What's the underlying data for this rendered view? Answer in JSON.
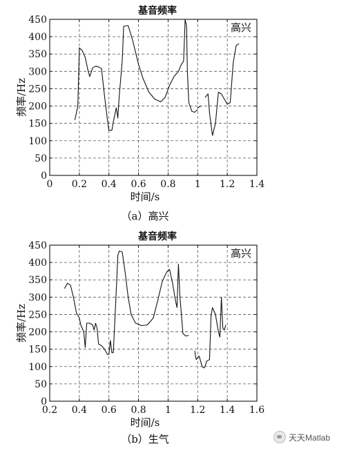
{
  "chart_data": [
    {
      "type": "line",
      "title": "基音频率",
      "xlabel": "时间/s",
      "ylabel": "频率/Hz",
      "annotation": "高兴",
      "caption": "（a）高兴",
      "xlim": [
        0,
        1.4
      ],
      "ylim": [
        0,
        450
      ],
      "xticks": [
        "0",
        "0.2",
        "0.4",
        "0.6",
        "0.8",
        "1",
        "1.2",
        "1.4"
      ],
      "yticks": [
        "0",
        "50",
        "100",
        "150",
        "200",
        "250",
        "300",
        "350",
        "400",
        "450"
      ],
      "grid": true,
      "series": [
        {
          "points": [
            [
              0.17,
              160
            ],
            [
              0.19,
              200
            ],
            [
              0.2,
              368
            ],
            [
              0.22,
              360
            ],
            [
              0.24,
              340
            ],
            [
              0.26,
              300
            ],
            [
              0.27,
              285
            ],
            [
              0.29,
              310
            ],
            [
              0.31,
              315
            ],
            [
              0.33,
              313
            ],
            [
              0.35,
              308
            ],
            [
              0.37,
              230
            ],
            [
              0.39,
              160
            ],
            [
              0.4,
              130
            ],
            [
              0.42,
              130
            ],
            [
              0.43,
              155
            ],
            [
              0.45,
              195
            ],
            [
              0.46,
              165
            ],
            [
              0.47,
              230
            ],
            [
              0.49,
              330
            ],
            [
              0.5,
              430
            ],
            [
              0.53,
              432
            ],
            [
              0.56,
              390
            ],
            [
              0.6,
              320
            ],
            [
              0.63,
              280
            ],
            [
              0.67,
              240
            ],
            [
              0.71,
              220
            ],
            [
              0.75,
              212
            ],
            [
              0.78,
              225
            ],
            [
              0.81,
              260
            ],
            [
              0.84,
              285
            ],
            [
              0.87,
              300
            ],
            [
              0.89,
              320
            ],
            [
              0.905,
              330
            ],
            [
              0.915,
              450
            ],
            [
              0.925,
              430
            ],
            [
              0.93,
              300
            ],
            [
              0.94,
              210
            ],
            [
              0.96,
              185
            ],
            [
              0.98,
              182
            ],
            [
              1.0,
              190
            ]
          ]
        },
        {
          "points": [
            [
              1.0,
              195
            ],
            [
              1.02,
              200
            ]
          ]
        },
        {
          "points": [
            [
              1.05,
              225
            ],
            [
              1.07,
              235
            ],
            [
              1.08,
              180
            ],
            [
              1.1,
              115
            ],
            [
              1.12,
              150
            ],
            [
              1.14,
              240
            ],
            [
              1.16,
              235
            ],
            [
              1.2,
              205
            ],
            [
              1.22,
              210
            ],
            [
              1.24,
              325
            ],
            [
              1.26,
              375
            ],
            [
              1.28,
              380
            ]
          ]
        }
      ]
    },
    {
      "type": "line",
      "title": "基音频率",
      "xlabel": "时间/s",
      "ylabel": "频率/Hz",
      "annotation": "高兴",
      "caption": "（b）生气",
      "xlim": [
        0.2,
        1.6
      ],
      "ylim": [
        0,
        450
      ],
      "xticks": [
        "0.2",
        "0.4",
        "0.6",
        "0.8",
        "1",
        "1.2",
        "1.4",
        "1.6"
      ],
      "yticks": [
        "0",
        "50",
        "100",
        "150",
        "200",
        "250",
        "300",
        "350",
        "400",
        "450"
      ],
      "grid": true,
      "series": [
        {
          "points": [
            [
              0.3,
              325
            ],
            [
              0.32,
              340
            ],
            [
              0.34,
              335
            ],
            [
              0.36,
              300
            ],
            [
              0.38,
              255
            ],
            [
              0.4,
              240
            ],
            [
              0.41,
              220
            ],
            [
              0.43,
              200
            ],
            [
              0.44,
              155
            ],
            [
              0.45,
              225
            ],
            [
              0.47,
              225
            ],
            [
              0.49,
              220
            ],
            [
              0.5,
              205
            ],
            [
              0.51,
              225
            ],
            [
              0.52,
              210
            ],
            [
              0.53,
              165
            ],
            [
              0.55,
              160
            ],
            [
              0.57,
              150
            ],
            [
              0.59,
              135
            ],
            [
              0.6,
              135
            ],
            [
              0.61,
              175
            ],
            [
              0.62,
              140
            ],
            [
              0.63,
              140
            ],
            [
              0.65,
              320
            ],
            [
              0.66,
              420
            ],
            [
              0.67,
              433
            ],
            [
              0.69,
              430
            ],
            [
              0.71,
              370
            ],
            [
              0.73,
              300
            ],
            [
              0.75,
              250
            ],
            [
              0.78,
              225
            ],
            [
              0.82,
              218
            ],
            [
              0.86,
              220
            ],
            [
              0.9,
              240
            ],
            [
              0.93,
              290
            ],
            [
              0.96,
              345
            ],
            [
              0.99,
              372
            ],
            [
              1.01,
              380
            ],
            [
              1.03,
              340
            ],
            [
              1.05,
              290
            ],
            [
              1.06,
              270
            ],
            [
              1.07,
              395
            ],
            [
              1.08,
              300
            ],
            [
              1.09,
              250
            ],
            [
              1.1,
              195
            ],
            [
              1.12,
              188
            ],
            [
              1.14,
              190
            ]
          ]
        },
        {
          "points": [
            [
              1.18,
              145
            ],
            [
              1.19,
              120
            ],
            [
              1.21,
              130
            ],
            [
              1.23,
              100
            ],
            [
              1.24,
              96
            ],
            [
              1.25,
              100
            ],
            [
              1.26,
              115
            ],
            [
              1.28,
              120
            ],
            [
              1.29,
              245
            ],
            [
              1.3,
              270
            ],
            [
              1.32,
              250
            ],
            [
              1.34,
              200
            ],
            [
              1.35,
              185
            ],
            [
              1.36,
              300
            ],
            [
              1.37,
              210
            ],
            [
              1.38,
              205
            ],
            [
              1.39,
              220
            ]
          ]
        }
      ]
    }
  ],
  "watermark": {
    "text": "天天Matlab",
    "logo": "wechat-icon"
  }
}
